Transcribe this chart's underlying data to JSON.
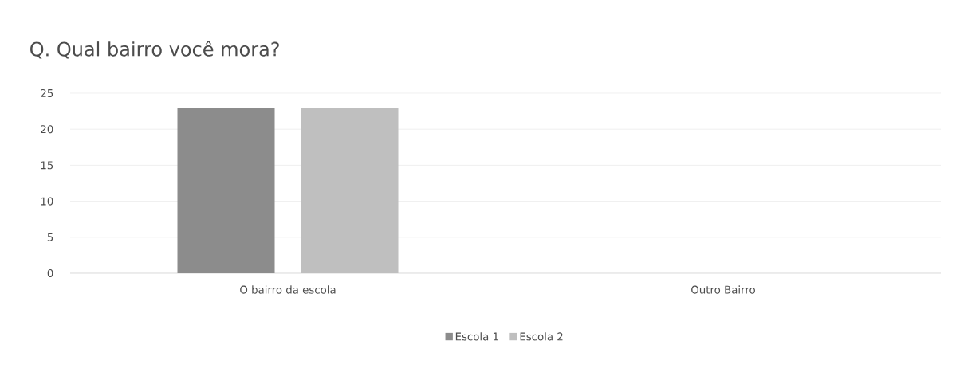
{
  "chart_data": {
    "type": "bar",
    "title": "Q. Qual  bairro você mora?",
    "categories": [
      "O bairro da escola",
      "Outro Bairro"
    ],
    "series": [
      {
        "name": "Escola 1",
        "color": "#8c8c8c",
        "values": [
          23,
          0
        ]
      },
      {
        "name": "Escola 2",
        "color": "#bfbfbf",
        "values": [
          23,
          0
        ]
      }
    ],
    "ylim": [
      0,
      25
    ],
    "yticks": [
      0,
      5,
      10,
      15,
      20,
      25
    ],
    "grid": "y",
    "legend": "bottom"
  }
}
